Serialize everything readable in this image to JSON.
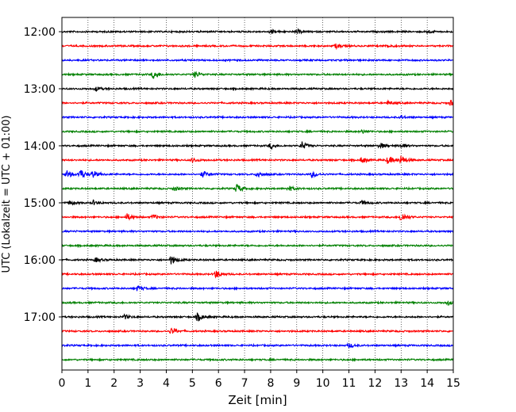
{
  "chart_data": {
    "type": "line",
    "xlabel": "Zeit  [min]",
    "ylabel": "UTC (Lokalzeit = UTC + 01:00)",
    "xlim": [
      0,
      15
    ],
    "x_ticks": [
      "0",
      "1",
      "2",
      "3",
      "4",
      "5",
      "6",
      "7",
      "8",
      "9",
      "10",
      "11",
      "12",
      "13",
      "14",
      "15"
    ],
    "y_tick_labels": [
      "12:00",
      "13:00",
      "14:00",
      "15:00",
      "16:00",
      "17:00"
    ],
    "grid": "vertical dotted at each minute",
    "trace_interval_min": 15,
    "colors_cycle": [
      "#000000",
      "#ff0000",
      "#0000ff",
      "#008000"
    ],
    "traces": [
      {
        "start": "12:00",
        "color": "#000000",
        "events": [
          {
            "t": 8.0,
            "amp": 0.25
          },
          {
            "t": 9.0,
            "amp": 0.3
          },
          {
            "t": 14.0,
            "amp": 0.25
          }
        ]
      },
      {
        "start": "12:15",
        "color": "#ff0000",
        "events": [
          {
            "t": 10.5,
            "amp": 0.3
          },
          {
            "t": 12.5,
            "amp": 0.2
          }
        ]
      },
      {
        "start": "12:30",
        "color": "#0000ff",
        "events": []
      },
      {
        "start": "12:45",
        "color": "#008000",
        "events": [
          {
            "t": 3.5,
            "amp": 0.55
          },
          {
            "t": 5.1,
            "amp": 0.4
          }
        ]
      },
      {
        "start": "13:00",
        "color": "#000000",
        "events": [
          {
            "t": 1.3,
            "amp": 0.3
          }
        ]
      },
      {
        "start": "13:15",
        "color": "#ff0000",
        "events": [
          {
            "t": 12.5,
            "amp": 0.25
          },
          {
            "t": 14.9,
            "amp": 0.35
          }
        ]
      },
      {
        "start": "13:30",
        "color": "#0000ff",
        "events": [
          {
            "t": 13.0,
            "amp": 0.2
          }
        ]
      },
      {
        "start": "13:45",
        "color": "#008000",
        "events": [
          {
            "t": 11.5,
            "amp": 0.25
          }
        ]
      },
      {
        "start": "14:00",
        "color": "#000000",
        "events": [
          {
            "t": 8.0,
            "amp": 0.35
          },
          {
            "t": 9.2,
            "amp": 0.55
          },
          {
            "t": 12.2,
            "amp": 0.4
          },
          {
            "t": 13.0,
            "amp": 0.3
          }
        ]
      },
      {
        "start": "14:15",
        "color": "#ff0000",
        "events": [
          {
            "t": 5.0,
            "amp": 0.3
          },
          {
            "t": 11.5,
            "amp": 0.45
          },
          {
            "t": 12.5,
            "amp": 0.55
          },
          {
            "t": 13.0,
            "amp": 0.6
          }
        ]
      },
      {
        "start": "14:30",
        "color": "#0000ff",
        "events": [
          {
            "t": 0.2,
            "amp": 0.5
          },
          {
            "t": 0.7,
            "amp": 0.7
          },
          {
            "t": 1.2,
            "amp": 0.45
          },
          {
            "t": 5.4,
            "amp": 0.45
          },
          {
            "t": 7.5,
            "amp": 0.45
          },
          {
            "t": 9.6,
            "amp": 0.4
          }
        ]
      },
      {
        "start": "14:45",
        "color": "#008000",
        "events": [
          {
            "t": 4.3,
            "amp": 0.3
          },
          {
            "t": 6.7,
            "amp": 0.6
          },
          {
            "t": 8.7,
            "amp": 0.35
          }
        ]
      },
      {
        "start": "15:00",
        "color": "#000000",
        "events": [
          {
            "t": 0.3,
            "amp": 0.3
          },
          {
            "t": 1.2,
            "amp": 0.3
          },
          {
            "t": 11.5,
            "amp": 0.3
          }
        ]
      },
      {
        "start": "15:15",
        "color": "#ff0000",
        "events": [
          {
            "t": 2.5,
            "amp": 0.45
          },
          {
            "t": 3.5,
            "amp": 0.3
          },
          {
            "t": 13.0,
            "amp": 0.7
          }
        ]
      },
      {
        "start": "15:30",
        "color": "#0000ff",
        "events": []
      },
      {
        "start": "15:45",
        "color": "#008000",
        "events": []
      },
      {
        "start": "16:00",
        "color": "#000000",
        "events": [
          {
            "t": 1.3,
            "amp": 0.3
          },
          {
            "t": 4.2,
            "amp": 0.65
          }
        ]
      },
      {
        "start": "16:15",
        "color": "#ff0000",
        "events": [
          {
            "t": 5.9,
            "amp": 0.55
          }
        ]
      },
      {
        "start": "16:30",
        "color": "#0000ff",
        "events": [
          {
            "t": 2.9,
            "amp": 0.35
          }
        ]
      },
      {
        "start": "16:45",
        "color": "#008000",
        "events": [
          {
            "t": 14.8,
            "amp": 0.3
          }
        ]
      },
      {
        "start": "17:00",
        "color": "#000000",
        "events": [
          {
            "t": 2.4,
            "amp": 0.3
          },
          {
            "t": 5.2,
            "amp": 0.6
          }
        ]
      },
      {
        "start": "17:15",
        "color": "#ff0000",
        "events": [
          {
            "t": 4.2,
            "amp": 0.45
          }
        ]
      },
      {
        "start": "17:30",
        "color": "#0000ff",
        "events": [
          {
            "t": 11.0,
            "amp": 0.3
          }
        ]
      },
      {
        "start": "17:45",
        "color": "#008000",
        "events": []
      }
    ]
  }
}
